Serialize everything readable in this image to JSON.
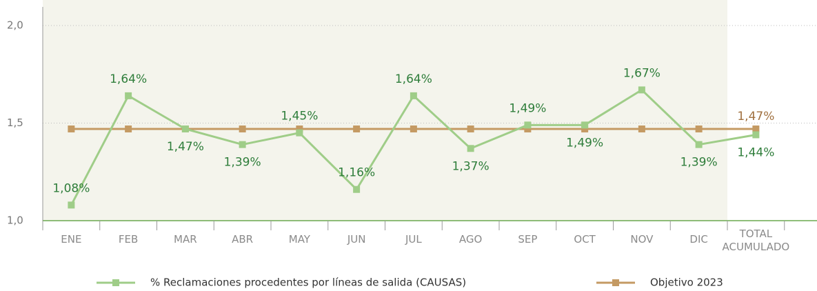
{
  "chart_data": {
    "type": "line",
    "categories": [
      "ENE",
      "FEB",
      "MAR",
      "ABR",
      "MAY",
      "JUN",
      "JUL",
      "AGO",
      "SEP",
      "OCT",
      "NOV",
      "DIC",
      "TOTAL\nACUMULADO"
    ],
    "series": [
      {
        "name": "% Reclamaciones procedentes por líneas de salida (CAUSAS)",
        "color": "#9fcd88",
        "values": [
          1.08,
          1.64,
          1.47,
          1.39,
          1.45,
          1.16,
          1.64,
          1.37,
          1.49,
          1.49,
          1.67,
          1.39,
          1.44
        ],
        "value_labels": [
          "1,08%",
          "1,64%",
          "1,47%",
          "1,39%",
          "1,45%",
          "1,16%",
          "1,64%",
          "1,37%",
          "1,49%",
          "1,49%",
          "1,67%",
          "1,39%",
          "1,44%"
        ]
      },
      {
        "name": "Objetivo 2023",
        "color": "#c49a63",
        "values": [
          1.47,
          1.47,
          1.47,
          1.47,
          1.47,
          1.47,
          1.47,
          1.47,
          1.47,
          1.47,
          1.47,
          1.47,
          1.47
        ],
        "value_labels": [
          null,
          null,
          null,
          null,
          null,
          null,
          null,
          null,
          null,
          null,
          null,
          null,
          "1,47%"
        ]
      }
    ],
    "ylim": [
      1.0,
      2.0
    ],
    "yticks": [
      {
        "value": 1.0,
        "label": "1,0"
      },
      {
        "value": 1.5,
        "label": "1,5"
      },
      {
        "value": 2.0,
        "label": "2,0"
      }
    ],
    "grid": true,
    "legend": "bottom"
  }
}
